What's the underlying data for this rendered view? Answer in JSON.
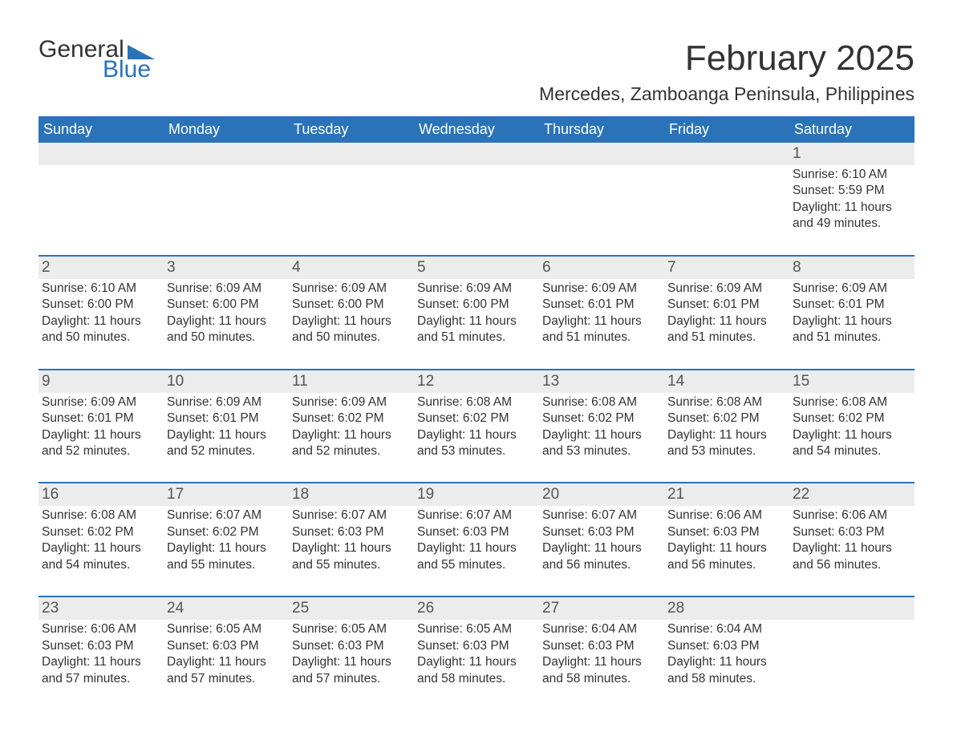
{
  "brand": {
    "word1": "General",
    "word2": "Blue",
    "accent_color": "#2a73b8"
  },
  "title": "February 2025",
  "location": "Mercedes, Zamboanga Peninsula, Philippines",
  "colors": {
    "header_bg": "#2a73b8",
    "header_text": "#ffffff",
    "band_bg": "#ececec",
    "band_border": "#2a73b8",
    "text": "#333333",
    "daynum_text": "#555555",
    "page_bg": "#ffffff"
  },
  "weekdays": [
    "Sunday",
    "Monday",
    "Tuesday",
    "Wednesday",
    "Thursday",
    "Friday",
    "Saturday"
  ],
  "weeks": [
    {
      "first": true,
      "days": [
        {
          "num": "",
          "lines": []
        },
        {
          "num": "",
          "lines": []
        },
        {
          "num": "",
          "lines": []
        },
        {
          "num": "",
          "lines": []
        },
        {
          "num": "",
          "lines": []
        },
        {
          "num": "",
          "lines": []
        },
        {
          "num": "1",
          "lines": [
            "Sunrise: 6:10 AM",
            "Sunset: 5:59 PM",
            "Daylight: 11 hours",
            "and 49 minutes."
          ]
        }
      ]
    },
    {
      "days": [
        {
          "num": "2",
          "lines": [
            "Sunrise: 6:10 AM",
            "Sunset: 6:00 PM",
            "Daylight: 11 hours",
            "and 50 minutes."
          ]
        },
        {
          "num": "3",
          "lines": [
            "Sunrise: 6:09 AM",
            "Sunset: 6:00 PM",
            "Daylight: 11 hours",
            "and 50 minutes."
          ]
        },
        {
          "num": "4",
          "lines": [
            "Sunrise: 6:09 AM",
            "Sunset: 6:00 PM",
            "Daylight: 11 hours",
            "and 50 minutes."
          ]
        },
        {
          "num": "5",
          "lines": [
            "Sunrise: 6:09 AM",
            "Sunset: 6:00 PM",
            "Daylight: 11 hours",
            "and 51 minutes."
          ]
        },
        {
          "num": "6",
          "lines": [
            "Sunrise: 6:09 AM",
            "Sunset: 6:01 PM",
            "Daylight: 11 hours",
            "and 51 minutes."
          ]
        },
        {
          "num": "7",
          "lines": [
            "Sunrise: 6:09 AM",
            "Sunset: 6:01 PM",
            "Daylight: 11 hours",
            "and 51 minutes."
          ]
        },
        {
          "num": "8",
          "lines": [
            "Sunrise: 6:09 AM",
            "Sunset: 6:01 PM",
            "Daylight: 11 hours",
            "and 51 minutes."
          ]
        }
      ]
    },
    {
      "days": [
        {
          "num": "9",
          "lines": [
            "Sunrise: 6:09 AM",
            "Sunset: 6:01 PM",
            "Daylight: 11 hours",
            "and 52 minutes."
          ]
        },
        {
          "num": "10",
          "lines": [
            "Sunrise: 6:09 AM",
            "Sunset: 6:01 PM",
            "Daylight: 11 hours",
            "and 52 minutes."
          ]
        },
        {
          "num": "11",
          "lines": [
            "Sunrise: 6:09 AM",
            "Sunset: 6:02 PM",
            "Daylight: 11 hours",
            "and 52 minutes."
          ]
        },
        {
          "num": "12",
          "lines": [
            "Sunrise: 6:08 AM",
            "Sunset: 6:02 PM",
            "Daylight: 11 hours",
            "and 53 minutes."
          ]
        },
        {
          "num": "13",
          "lines": [
            "Sunrise: 6:08 AM",
            "Sunset: 6:02 PM",
            "Daylight: 11 hours",
            "and 53 minutes."
          ]
        },
        {
          "num": "14",
          "lines": [
            "Sunrise: 6:08 AM",
            "Sunset: 6:02 PM",
            "Daylight: 11 hours",
            "and 53 minutes."
          ]
        },
        {
          "num": "15",
          "lines": [
            "Sunrise: 6:08 AM",
            "Sunset: 6:02 PM",
            "Daylight: 11 hours",
            "and 54 minutes."
          ]
        }
      ]
    },
    {
      "days": [
        {
          "num": "16",
          "lines": [
            "Sunrise: 6:08 AM",
            "Sunset: 6:02 PM",
            "Daylight: 11 hours",
            "and 54 minutes."
          ]
        },
        {
          "num": "17",
          "lines": [
            "Sunrise: 6:07 AM",
            "Sunset: 6:02 PM",
            "Daylight: 11 hours",
            "and 55 minutes."
          ]
        },
        {
          "num": "18",
          "lines": [
            "Sunrise: 6:07 AM",
            "Sunset: 6:03 PM",
            "Daylight: 11 hours",
            "and 55 minutes."
          ]
        },
        {
          "num": "19",
          "lines": [
            "Sunrise: 6:07 AM",
            "Sunset: 6:03 PM",
            "Daylight: 11 hours",
            "and 55 minutes."
          ]
        },
        {
          "num": "20",
          "lines": [
            "Sunrise: 6:07 AM",
            "Sunset: 6:03 PM",
            "Daylight: 11 hours",
            "and 56 minutes."
          ]
        },
        {
          "num": "21",
          "lines": [
            "Sunrise: 6:06 AM",
            "Sunset: 6:03 PM",
            "Daylight: 11 hours",
            "and 56 minutes."
          ]
        },
        {
          "num": "22",
          "lines": [
            "Sunrise: 6:06 AM",
            "Sunset: 6:03 PM",
            "Daylight: 11 hours",
            "and 56 minutes."
          ]
        }
      ]
    },
    {
      "short": true,
      "days": [
        {
          "num": "23",
          "lines": [
            "Sunrise: 6:06 AM",
            "Sunset: 6:03 PM",
            "Daylight: 11 hours",
            "and 57 minutes."
          ]
        },
        {
          "num": "24",
          "lines": [
            "Sunrise: 6:05 AM",
            "Sunset: 6:03 PM",
            "Daylight: 11 hours",
            "and 57 minutes."
          ]
        },
        {
          "num": "25",
          "lines": [
            "Sunrise: 6:05 AM",
            "Sunset: 6:03 PM",
            "Daylight: 11 hours",
            "and 57 minutes."
          ]
        },
        {
          "num": "26",
          "lines": [
            "Sunrise: 6:05 AM",
            "Sunset: 6:03 PM",
            "Daylight: 11 hours",
            "and 58 minutes."
          ]
        },
        {
          "num": "27",
          "lines": [
            "Sunrise: 6:04 AM",
            "Sunset: 6:03 PM",
            "Daylight: 11 hours",
            "and 58 minutes."
          ]
        },
        {
          "num": "28",
          "lines": [
            "Sunrise: 6:04 AM",
            "Sunset: 6:03 PM",
            "Daylight: 11 hours",
            "and 58 minutes."
          ]
        },
        {
          "num": "",
          "lines": []
        }
      ]
    }
  ]
}
